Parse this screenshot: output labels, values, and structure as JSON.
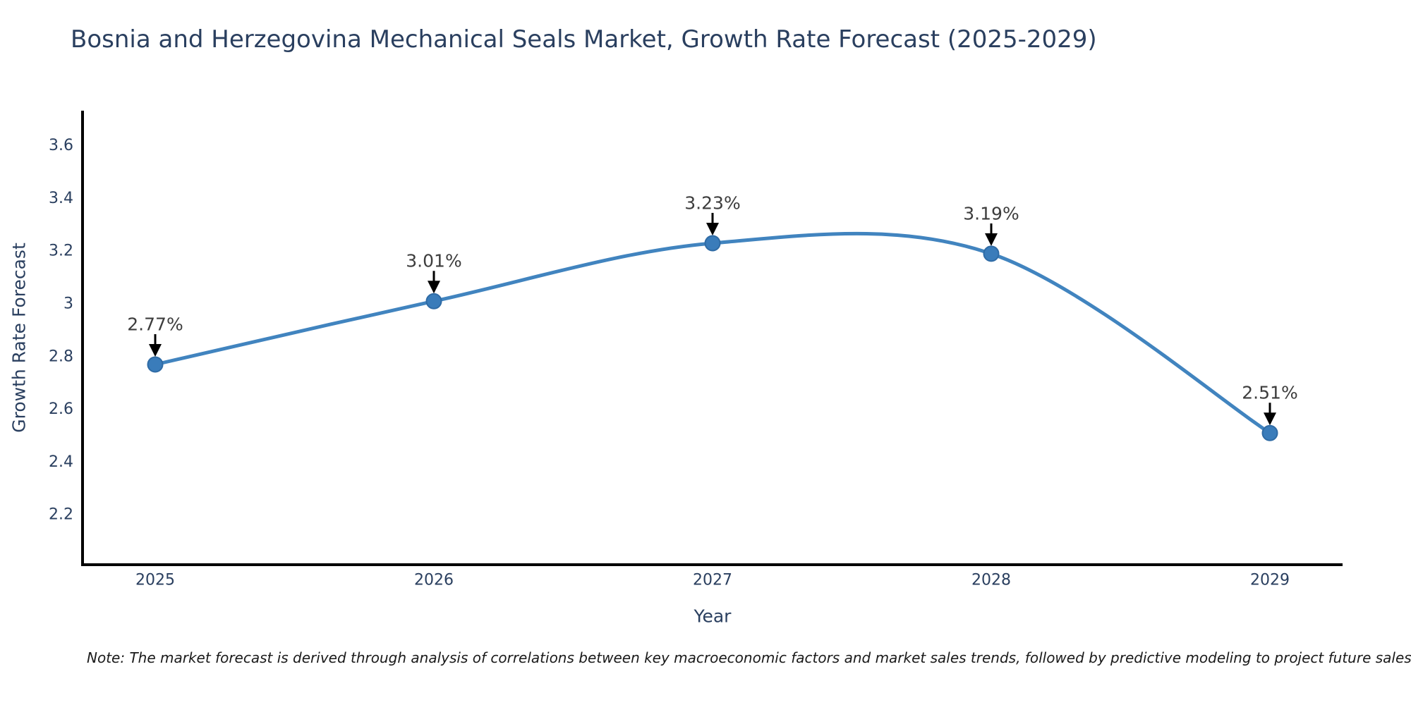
{
  "header": {
    "title": "Bosnia and Herzegovina Mechanical Seals Market, Growth Rate Forecast (2025-2029)"
  },
  "chart_data": {
    "type": "line",
    "line_shape": "spline",
    "title": "Bosnia and Herzegovina Mechanical Seals Market, Growth Rate Forecast (2025-2029)",
    "xlabel": "Year",
    "ylabel": "Growth Rate Forecast",
    "x": [
      2025,
      2026,
      2027,
      2028,
      2029
    ],
    "values": [
      2.77,
      3.01,
      3.23,
      3.19,
      2.51
    ],
    "point_labels": [
      "2.77%",
      "3.01%",
      "3.23%",
      "3.19%",
      "2.51%"
    ],
    "xtick_labels": [
      "2025",
      "2026",
      "2027",
      "2028",
      "2029"
    ],
    "yticks": [
      3.6,
      3.4,
      3.2,
      3.0,
      2.8,
      2.6,
      2.4,
      2.2
    ],
    "ytick_labels": [
      "3.6",
      "3.4",
      "3.2",
      "3",
      "2.8",
      "2.6",
      "2.4",
      "2.2"
    ],
    "ylim": [
      2.01,
      3.73
    ],
    "grid": false,
    "legend": "none",
    "markers": true,
    "annotations_have_arrows": true,
    "colors": {
      "line": "#4184bf",
      "marker": "#3a7cba",
      "marker_edge": "#2f6ba5",
      "axis": "#000000",
      "title_text": "#2a3f5f",
      "tick_text": "#2a3f5f",
      "label_text": "#3d3d3d",
      "annotation_arrow": "#000000",
      "background": "#ffffff"
    }
  },
  "footer": {
    "note": "Note: The market forecast is derived through analysis of correlations between key macroeconomic factors and market sales trends, followed by predictive modeling to project future sales"
  }
}
